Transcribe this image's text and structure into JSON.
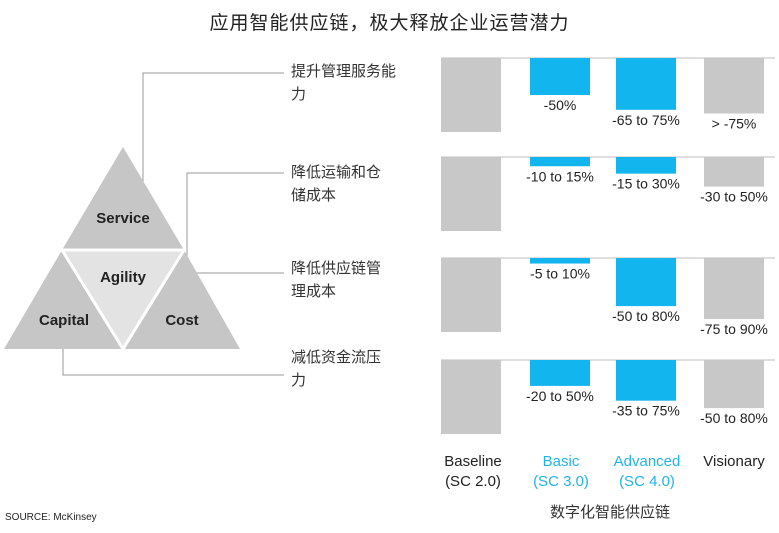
{
  "title": "应用智能供应链，极大释放企业运营潜力",
  "triangle": {
    "top": "Service",
    "center": "Agility",
    "left": "Capital",
    "right": "Cost"
  },
  "rows": [
    {
      "label_line1": "提升管理服务能",
      "label_line2": "力"
    },
    {
      "label_line1": "降低运输和仓",
      "label_line2": "储成本"
    },
    {
      "label_line1": "降低供应链管",
      "label_line2": "理成本"
    },
    {
      "label_line1": "减低资金流压",
      "label_line2": "力"
    }
  ],
  "columns": [
    {
      "line1": "Baseline",
      "line2": "(SC 2.0)",
      "color": "#222222"
    },
    {
      "line1": "Basic",
      "line2": "(SC 3.0)",
      "color": "#1fb4ec"
    },
    {
      "line1": "Advanced",
      "line2": "(SC 4.0)",
      "color": "#1fb4ec"
    },
    {
      "line1": "Visionary",
      "line2": "",
      "color": "#222222"
    }
  ],
  "subtitle": "数字化智能供应链",
  "source": "SOURCE: McKinsey",
  "colors": {
    "gray": "#c8c8c8",
    "blue": "#13b5ef",
    "triangle_gray": "#c6c6c6",
    "triangle_light": "#e3e3e3"
  },
  "chart_data": {
    "type": "bar",
    "categories": [
      "Baseline (SC 2.0)",
      "Basic (SC 3.0)",
      "Advanced (SC 4.0)",
      "Visionary"
    ],
    "ylim": [
      0,
      100
    ],
    "panels": [
      {
        "label": "提升管理服务能力",
        "values": [
          100,
          50,
          70,
          75
        ],
        "value_labels": [
          "",
          "-50%",
          "-65 to 75%",
          "> -75%"
        ]
      },
      {
        "label": "降低运输和仓储成本",
        "values": [
          100,
          12.5,
          22.5,
          40
        ],
        "value_labels": [
          "",
          "-10 to 15%",
          "-15 to 30%",
          "-30 to 50%"
        ]
      },
      {
        "label": "降低供应链管理成本",
        "values": [
          100,
          7.5,
          65,
          82.5
        ],
        "value_labels": [
          "",
          "-5 to 10%",
          "-50 to 80%",
          "-75 to 90%"
        ]
      },
      {
        "label": "减低资金流压力",
        "values": [
          100,
          35,
          55,
          65
        ],
        "value_labels": [
          "",
          "-20 to 50%",
          "-35 to 75%",
          "-50 to 80%"
        ]
      }
    ]
  }
}
